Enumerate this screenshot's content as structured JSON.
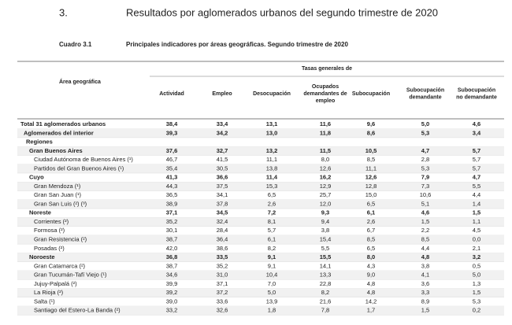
{
  "header": {
    "number": "3.",
    "title": "Resultados por aglomerados urbanos del segundo trimestre de 2020"
  },
  "caption": {
    "label": "Cuadro 3.1",
    "text": "Principales indicadores por áreas geográficas. Segundo trimestre de 2020"
  },
  "table": {
    "row_header": "Área geográfica",
    "group_header": "Tasas generales de",
    "columns": [
      "Actividad",
      "Empleo",
      "Desocupación",
      "Ocupados demandantes de empleo",
      "Subocupación",
      "Subocupación demandante",
      "Subocupación no demandante"
    ],
    "totals": [
      {
        "label": "Total 31 aglomerados urbanos",
        "values": [
          "38,4",
          "33,4",
          "13,1",
          "11,6",
          "9,6",
          "5,0",
          "4,6"
        ]
      },
      {
        "label": "Aglomerados del interior",
        "values": [
          "39,3",
          "34,2",
          "13,0",
          "11,8",
          "8,6",
          "5,3",
          "3,4"
        ]
      }
    ],
    "regions_label": "Regiones",
    "regions": [
      {
        "label": "Gran Buenos Aires",
        "values": [
          "37,6",
          "32,7",
          "13,2",
          "11,5",
          "10,5",
          "4,7",
          "5,7"
        ],
        "cities": [
          {
            "label": "Ciudad Autónoma de Buenos Aires (¹)",
            "values": [
              "46,7",
              "41,5",
              "11,1",
              "8,0",
              "8,5",
              "2,8",
              "5,7"
            ]
          },
          {
            "label": "Partidos del Gran Buenos Aires (¹)",
            "values": [
              "35,4",
              "30,5",
              "13,8",
              "12,6",
              "11,1",
              "5,3",
              "5,7"
            ]
          }
        ]
      },
      {
        "label": "Cuyo",
        "values": [
          "41,3",
          "36,6",
          "11,4",
          "16,2",
          "12,6",
          "7,9",
          "4,7"
        ],
        "cities": [
          {
            "label": "Gran Mendoza (¹)",
            "values": [
              "44,3",
              "37,5",
              "15,3",
              "12,9",
              "12,8",
              "7,3",
              "5,5"
            ]
          },
          {
            "label": "Gran San Juan (¹)",
            "values": [
              "36,5",
              "34,1",
              "6,5",
              "25,7",
              "15,0",
              "10,6",
              "4,4"
            ]
          },
          {
            "label": "Gran San Luis (²) (³)",
            "values": [
              "38,9",
              "37,8",
              "2,6",
              "12,0",
              "6,5",
              "5,1",
              "1,4"
            ]
          }
        ]
      },
      {
        "label": "Noreste",
        "values": [
          "37,1",
          "34,5",
          "7,2",
          "9,3",
          "6,1",
          "4,6",
          "1,5"
        ],
        "cities": [
          {
            "label": "Corrientes (²)",
            "values": [
              "35,2",
              "32,4",
              "8,1",
              "9,4",
              "2,6",
              "1,5",
              "1,1"
            ]
          },
          {
            "label": "Formosa (²)",
            "values": [
              "30,1",
              "28,4",
              "5,7",
              "3,8",
              "6,7",
              "2,2",
              "4,5"
            ]
          },
          {
            "label": "Gran Resistencia (²)",
            "values": [
              "38,7",
              "36,4",
              "6,1",
              "15,4",
              "8,5",
              "8,5",
              "0,0"
            ]
          },
          {
            "label": "Posadas (²)",
            "values": [
              "42,0",
              "38,6",
              "8,2",
              "5,5",
              "6,5",
              "4,4",
              "2,1"
            ]
          }
        ]
      },
      {
        "label": "Noroeste",
        "values": [
          "36,8",
          "33,5",
          "9,1",
          "15,5",
          "8,0",
          "4,8",
          "3,2"
        ],
        "cities": [
          {
            "label": "Gran Catamarca (²)",
            "values": [
              "38,7",
              "35,2",
              "9,1",
              "14,1",
              "4,3",
              "3,8",
              "0,5"
            ]
          },
          {
            "label": "Gran Tucumán-Tafí Viejo (¹)",
            "values": [
              "34,6",
              "31,0",
              "10,4",
              "13,3",
              "9,0",
              "4,1",
              "5,0"
            ]
          },
          {
            "label": "Jujuy-Palpalá (²)",
            "values": [
              "39,9",
              "37,1",
              "7,0",
              "22,8",
              "4,8",
              "3,6",
              "1,3"
            ]
          },
          {
            "label": "La Rioja (²)",
            "values": [
              "39,2",
              "37,2",
              "5,0",
              "8,2",
              "4,8",
              "3,3",
              "1,5"
            ]
          },
          {
            "label": "Salta (¹)",
            "values": [
              "39,0",
              "33,6",
              "13,9",
              "21,6",
              "14,2",
              "8,9",
              "5,3"
            ]
          },
          {
            "label": "Santiago del Estero-La Banda (²)",
            "values": [
              "33,2",
              "32,6",
              "1,8",
              "7,8",
              "1,7",
              "1,5",
              "0,2"
            ]
          }
        ]
      }
    ]
  }
}
